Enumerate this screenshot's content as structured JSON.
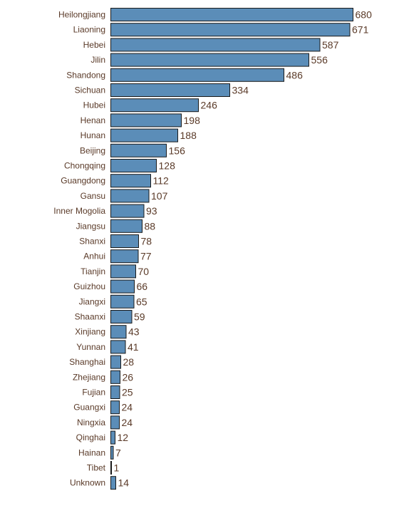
{
  "chart_data": {
    "type": "bar",
    "orientation": "horizontal",
    "title": "",
    "xlabel": "",
    "ylabel": "",
    "categories": [
      "Heilongjiang",
      "Liaoning",
      "Hebei",
      "Jilin",
      "Shandong",
      "Sichuan",
      "Hubei",
      "Henan",
      "Hunan",
      "Beijing",
      "Chongqing",
      "Guangdong",
      "Gansu",
      "Inner Mogolia",
      "Jiangsu",
      "Shanxi",
      "Anhui",
      "Tianjin",
      "Guizhou",
      "Jiangxi",
      "Shaanxi",
      "Xinjiang",
      "Yunnan",
      "Shanghai",
      "Zhejiang",
      "Fujian",
      "Guangxi",
      "Ningxia",
      "Qinghai",
      "Hainan",
      "Tibet",
      "Unknown"
    ],
    "values": [
      680,
      671,
      587,
      556,
      486,
      334,
      246,
      198,
      188,
      156,
      128,
      112,
      107,
      93,
      88,
      78,
      77,
      70,
      66,
      65,
      59,
      43,
      41,
      28,
      26,
      25,
      24,
      24,
      12,
      7,
      1,
      14
    ],
    "xlim": [
      0,
      680
    ],
    "bar_color": "#5b8db8",
    "bar_outline_color": "#1a1a1a",
    "label_color": "#5a3a28",
    "grid": false,
    "legend": false
  }
}
